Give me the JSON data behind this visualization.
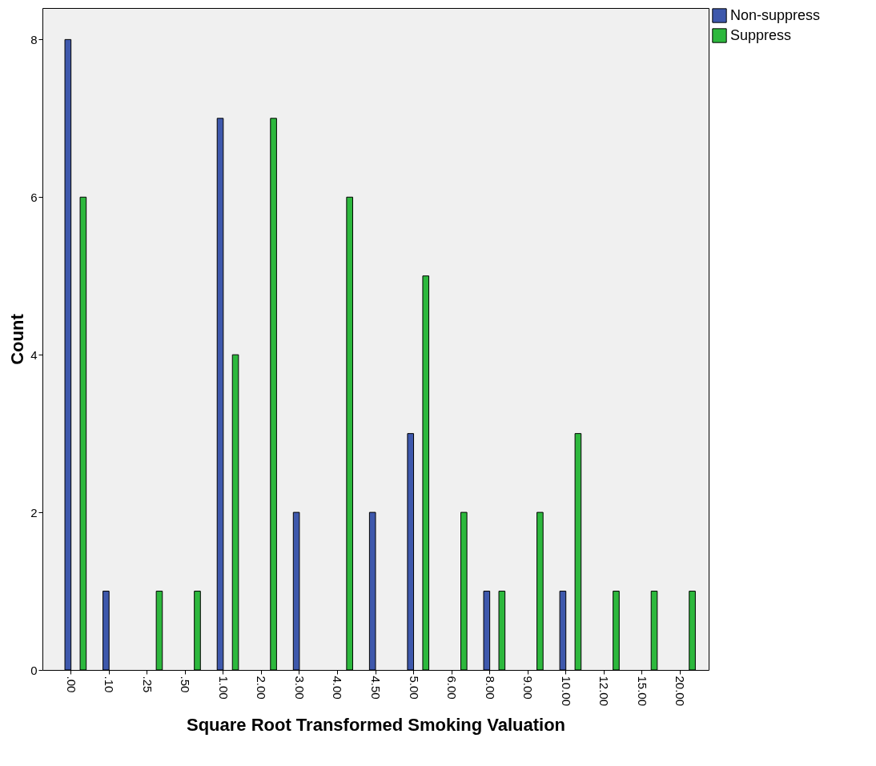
{
  "chart_data": {
    "type": "bar",
    "xlabel": "Square Root Transformed Smoking Valuation",
    "ylabel": "Count",
    "categories": [
      ".00",
      ".10",
      ".25",
      ".50",
      "1.00",
      "2.00",
      "3.00",
      "4.00",
      "4.50",
      "5.00",
      "6.00",
      "8.00",
      "9.00",
      "10.00",
      "12.00",
      "15.00",
      "20.00"
    ],
    "series": [
      {
        "name": "Non-suppress",
        "color": "#3e58ac",
        "values": [
          8,
          1,
          null,
          null,
          7,
          null,
          2,
          null,
          2,
          3,
          null,
          1,
          null,
          1,
          null,
          null,
          null
        ]
      },
      {
        "name": "Suppress",
        "color": "#2db83d",
        "values": [
          6,
          null,
          1,
          1,
          4,
          7,
          null,
          6,
          null,
          5,
          2,
          1,
          2,
          3,
          1,
          1,
          1
        ]
      }
    ],
    "ylim": [
      0,
      8.4
    ],
    "yticks": [
      0,
      2,
      4,
      6,
      8
    ],
    "grid": false,
    "legend": "top right"
  }
}
